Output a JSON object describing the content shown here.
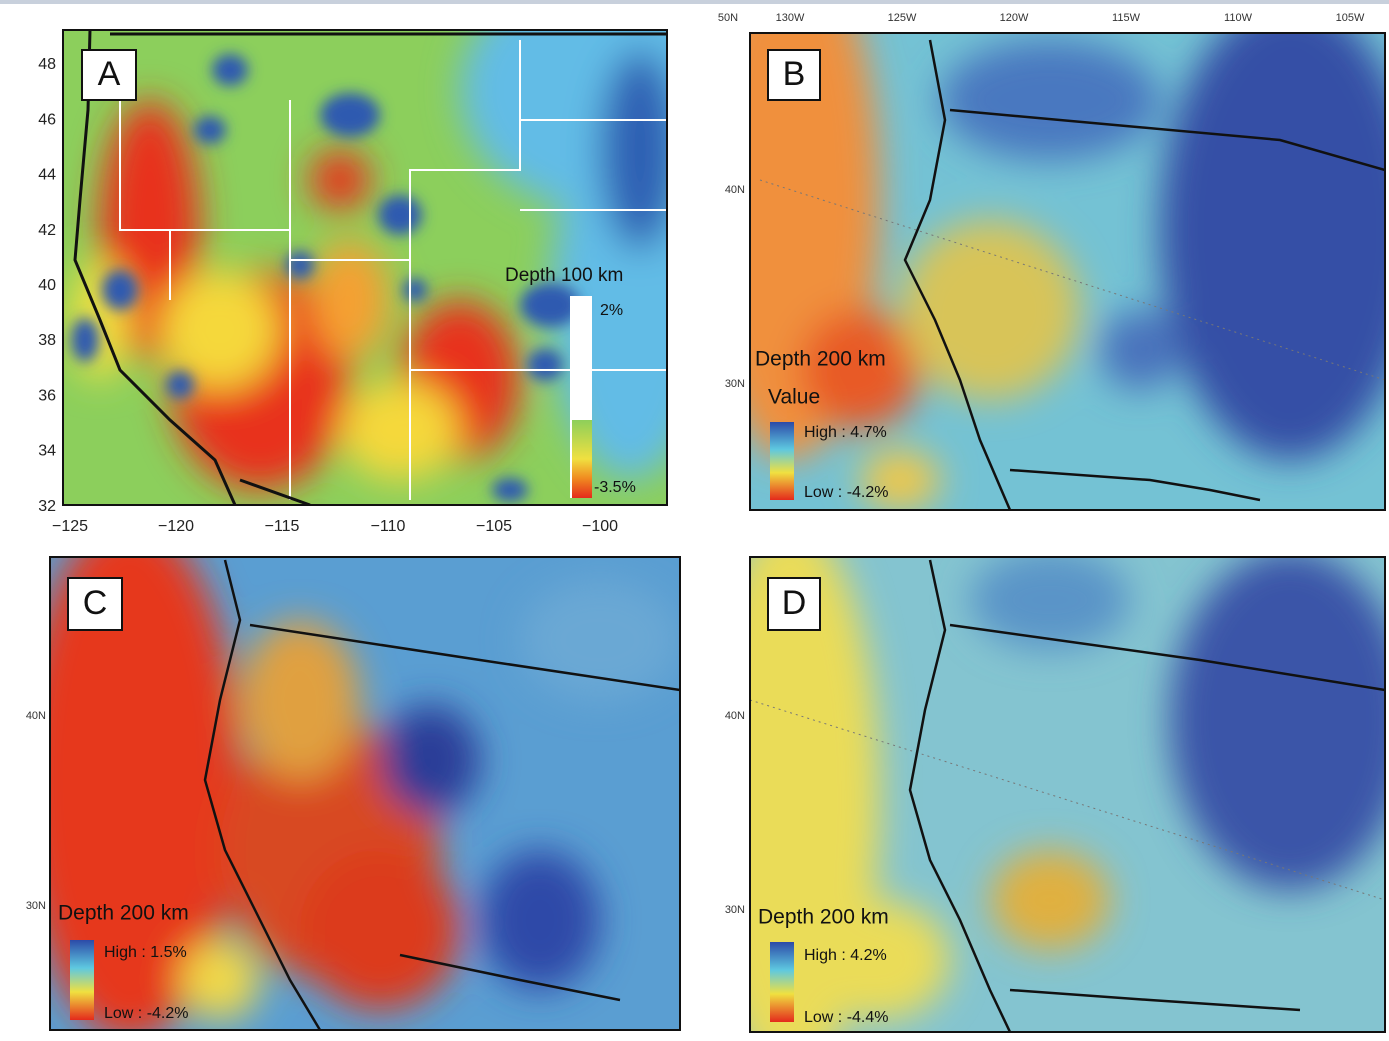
{
  "panels": [
    {
      "label": "A",
      "depth": "Depth 100 km",
      "high": "2%",
      "low": "-3.5%",
      "y_labels": [
        "48",
        "46",
        "44",
        "42",
        "40",
        "38",
        "36",
        "34",
        "32"
      ],
      "x_labels": [
        "−125",
        "−120",
        "−115",
        "−110",
        "−105",
        "−100"
      ]
    },
    {
      "label": "B",
      "depth": "Depth 200 km",
      "legend_title": "Value",
      "high": "High : 4.7%",
      "low": "Low : -4.2%",
      "top_labels": [
        "50N",
        "130W",
        "125W",
        "120W",
        "115W",
        "110W",
        "105W"
      ],
      "lat_labels": [
        "40N",
        "30N"
      ]
    },
    {
      "label": "C",
      "depth": "Depth 200 km",
      "high": "High : 1.5%",
      "low": "Low : -4.2%",
      "lat_labels": [
        "40N",
        "30N"
      ]
    },
    {
      "label": "D",
      "depth": "Depth 200 km",
      "high": "High : 4.2%",
      "low": "Low : -4.4%",
      "lat_labels": [
        "40N",
        "30N"
      ]
    }
  ]
}
